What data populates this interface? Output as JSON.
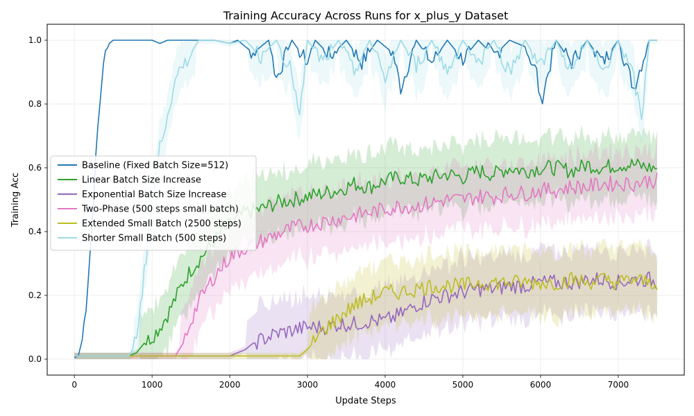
{
  "chart_data": {
    "type": "line",
    "title": "Training Accuracy Across Runs for x_plus_y Dataset",
    "xlabel": "Update Steps",
    "ylabel": "Training Acc",
    "xlim": [
      -350,
      7850
    ],
    "ylim": [
      -0.05,
      1.05
    ],
    "xticks": [
      0,
      1000,
      2000,
      3000,
      4000,
      5000,
      6000,
      7000
    ],
    "yticks": [
      0.0,
      0.2,
      0.4,
      0.6,
      0.8,
      1.0
    ],
    "xtick_labels": [
      "0",
      "1000",
      "2000",
      "3000",
      "4000",
      "5000",
      "6000",
      "7000"
    ],
    "ytick_labels": [
      "0.0",
      "0.2",
      "0.4",
      "0.6",
      "0.8",
      "1.0"
    ],
    "grid": true,
    "legend_position": "center-left",
    "series": [
      {
        "name": "Baseline (Fixed Batch Size=512)",
        "color": "#1f77b4",
        "x": [
          0,
          50,
          100,
          150,
          200,
          250,
          300,
          350,
          400,
          450,
          500,
          600,
          800,
          1000,
          1100,
          1200,
          1400,
          1600,
          1800,
          2000,
          2100,
          2300,
          2500,
          2600,
          2800,
          3000,
          3100,
          3300,
          3500,
          3700,
          3900,
          4100,
          4200,
          4400,
          4600,
          4800,
          5000,
          5200,
          5400,
          5600,
          5800,
          5950,
          6000,
          6200,
          6400,
          6600,
          6800,
          7000,
          7200,
          7400,
          7500
        ],
        "y": [
          0.005,
          0.01,
          0.06,
          0.17,
          0.33,
          0.52,
          0.72,
          0.87,
          0.96,
          0.99,
          1.0,
          1.0,
          1.0,
          1.0,
          0.99,
          1.0,
          1.0,
          1.0,
          1.0,
          0.99,
          1.0,
          0.96,
          1.0,
          0.88,
          1.0,
          0.93,
          1.0,
          0.95,
          1.0,
          0.93,
          1.0,
          0.96,
          0.85,
          1.0,
          0.93,
          1.0,
          0.94,
          1.0,
          0.95,
          1.0,
          0.98,
          0.9,
          0.8,
          1.0,
          0.93,
          1.0,
          0.93,
          1.0,
          0.85,
          1.0,
          1.0
        ]
      },
      {
        "name": "Linear Batch Size Increase",
        "color": "#2ca02c",
        "x": [
          0,
          200,
          400,
          600,
          700,
          800,
          900,
          1000,
          1100,
          1200,
          1300,
          1400,
          1500,
          1600,
          1700,
          1800,
          1900,
          2000,
          2200,
          2400,
          2600,
          2800,
          3000,
          3200,
          3400,
          3600,
          3800,
          4000,
          4200,
          4400,
          4600,
          4800,
          5000,
          5200,
          5400,
          5600,
          5800,
          6000,
          6200,
          6400,
          6600,
          6800,
          7000,
          7200,
          7400,
          7500
        ],
        "y": [
          0.01,
          0.01,
          0.01,
          0.01,
          0.01,
          0.02,
          0.05,
          0.07,
          0.1,
          0.14,
          0.19,
          0.24,
          0.28,
          0.31,
          0.34,
          0.37,
          0.4,
          0.42,
          0.46,
          0.47,
          0.49,
          0.5,
          0.51,
          0.52,
          0.53,
          0.55,
          0.54,
          0.56,
          0.57,
          0.56,
          0.57,
          0.58,
          0.57,
          0.59,
          0.58,
          0.6,
          0.59,
          0.6,
          0.6,
          0.59,
          0.61,
          0.6,
          0.61,
          0.61,
          0.6,
          0.6
        ]
      },
      {
        "name": "Exponential Batch Size Increase",
        "color": "#9467bd",
        "x": [
          0,
          500,
          1000,
          1500,
          2000,
          2100,
          2200,
          2300,
          2400,
          2500,
          2600,
          2800,
          3000,
          3200,
          3400,
          3600,
          3800,
          4000,
          4200,
          4400,
          4600,
          4800,
          5000,
          5200,
          5400,
          5600,
          5800,
          6000,
          6200,
          6400,
          6600,
          6800,
          7000,
          7200,
          7400,
          7500
        ],
        "y": [
          0.01,
          0.01,
          0.01,
          0.01,
          0.01,
          0.02,
          0.03,
          0.05,
          0.06,
          0.07,
          0.08,
          0.09,
          0.1,
          0.1,
          0.11,
          0.11,
          0.12,
          0.12,
          0.14,
          0.17,
          0.19,
          0.2,
          0.21,
          0.22,
          0.22,
          0.23,
          0.23,
          0.24,
          0.24,
          0.24,
          0.25,
          0.25,
          0.24,
          0.25,
          0.25,
          0.24
        ]
      },
      {
        "name": "Two-Phase (500 steps small batch)",
        "color": "#e377c2",
        "x": [
          0,
          500,
          1000,
          1300,
          1400,
          1500,
          1600,
          1700,
          1800,
          1900,
          2000,
          2200,
          2400,
          2600,
          2800,
          3000,
          3200,
          3400,
          3600,
          3800,
          4000,
          4200,
          4400,
          4600,
          4800,
          5000,
          5200,
          5400,
          5600,
          5800,
          6000,
          6200,
          6400,
          6600,
          6800,
          7000,
          7200,
          7400,
          7500
        ],
        "y": [
          0.01,
          0.01,
          0.01,
          0.01,
          0.05,
          0.12,
          0.18,
          0.22,
          0.26,
          0.29,
          0.32,
          0.35,
          0.37,
          0.39,
          0.41,
          0.42,
          0.43,
          0.44,
          0.45,
          0.46,
          0.47,
          0.48,
          0.48,
          0.49,
          0.5,
          0.5,
          0.51,
          0.51,
          0.52,
          0.52,
          0.53,
          0.53,
          0.54,
          0.54,
          0.55,
          0.55,
          0.55,
          0.56,
          0.56
        ]
      },
      {
        "name": "Extended Small Batch (2500 steps)",
        "color": "#bcbd22",
        "x": [
          0,
          500,
          1000,
          1500,
          2000,
          2500,
          2900,
          3000,
          3100,
          3200,
          3300,
          3400,
          3500,
          3600,
          3700,
          3800,
          3900,
          4000,
          4200,
          4400,
          4600,
          4800,
          5000,
          5200,
          5400,
          5600,
          5800,
          6000,
          6200,
          6400,
          6600,
          6800,
          7000,
          7200,
          7400,
          7500
        ],
        "y": [
          0.01,
          0.01,
          0.01,
          0.01,
          0.01,
          0.01,
          0.01,
          0.03,
          0.06,
          0.09,
          0.11,
          0.13,
          0.15,
          0.17,
          0.18,
          0.19,
          0.2,
          0.21,
          0.21,
          0.22,
          0.23,
          0.23,
          0.23,
          0.24,
          0.24,
          0.24,
          0.24,
          0.24,
          0.24,
          0.25,
          0.24,
          0.25,
          0.24,
          0.25,
          0.24,
          0.24
        ]
      },
      {
        "name": "Shorter Small Batch (500 steps)",
        "color": "#9edae5",
        "x": [
          0,
          500,
          700,
          750,
          800,
          850,
          900,
          950,
          1000,
          1050,
          1100,
          1150,
          1200,
          1250,
          1300,
          1350,
          1400,
          1450,
          1500,
          1550,
          1600,
          1700,
          1800,
          2000,
          2200,
          2400,
          2600,
          2800,
          2900,
          3000,
          3200,
          3400,
          3600,
          3800,
          4000,
          4200,
          4400,
          4600,
          4800,
          5000,
          5200,
          5400,
          5600,
          5800,
          6000,
          6200,
          6400,
          6600,
          6800,
          7000,
          7200,
          7300,
          7400,
          7500
        ],
        "y": [
          0.01,
          0.01,
          0.01,
          0.03,
          0.08,
          0.17,
          0.27,
          0.38,
          0.49,
          0.58,
          0.66,
          0.72,
          0.78,
          0.82,
          0.86,
          0.89,
          0.92,
          0.94,
          0.96,
          0.98,
          1.0,
          1.0,
          1.0,
          0.99,
          1.0,
          0.95,
          1.0,
          0.9,
          0.75,
          1.0,
          0.93,
          1.0,
          0.9,
          1.0,
          0.88,
          1.0,
          0.92,
          1.0,
          0.9,
          1.0,
          0.93,
          1.0,
          0.9,
          1.0,
          0.92,
          1.0,
          0.9,
          1.0,
          0.9,
          1.0,
          0.88,
          0.75,
          1.0,
          1.0
        ]
      }
    ]
  }
}
